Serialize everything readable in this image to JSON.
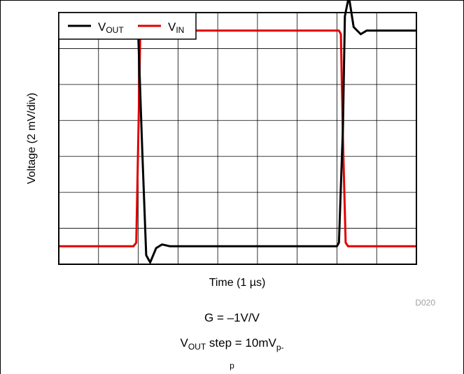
{
  "chart_data": {
    "type": "line",
    "xlabel": "Time (1 µs)",
    "ylabel": "Voltage (2 mV/div)",
    "x_divisions": 9,
    "y_divisions": 7,
    "xlim": [
      0,
      9
    ],
    "ylim": [
      0,
      7
    ],
    "grid": true,
    "legend_position": "top-left",
    "watermark": "D020",
    "series": [
      {
        "name": "VOUT",
        "color": "#000000",
        "points": [
          [
            0,
            6.5
          ],
          [
            1.95,
            6.5
          ],
          [
            2.0,
            6.35
          ],
          [
            2.1,
            3.2
          ],
          [
            2.2,
            0.25
          ],
          [
            2.3,
            0.05
          ],
          [
            2.45,
            0.45
          ],
          [
            2.6,
            0.55
          ],
          [
            2.8,
            0.5
          ],
          [
            3.5,
            0.5
          ],
          [
            7.0,
            0.5
          ],
          [
            7.05,
            0.6
          ],
          [
            7.15,
            3.8
          ],
          [
            7.2,
            6.9
          ],
          [
            7.3,
            7.45
          ],
          [
            7.42,
            6.6
          ],
          [
            7.6,
            6.4
          ],
          [
            7.75,
            6.5
          ],
          [
            9,
            6.5
          ]
        ]
      },
      {
        "name": "VIN",
        "color": "#e00000",
        "points": [
          [
            0,
            0.5
          ],
          [
            1.88,
            0.5
          ],
          [
            1.95,
            0.6
          ],
          [
            2.0,
            3.5
          ],
          [
            2.05,
            6.4
          ],
          [
            2.12,
            6.5
          ],
          [
            7.05,
            6.5
          ],
          [
            7.1,
            6.4
          ],
          [
            7.15,
            3.5
          ],
          [
            7.22,
            0.6
          ],
          [
            7.28,
            0.5
          ],
          [
            9,
            0.5
          ]
        ]
      }
    ]
  },
  "legend": {
    "vout_main": "V",
    "vout_sub": "OUT",
    "vin_main": "V",
    "vin_sub": "IN"
  },
  "caption": {
    "gain": "G = –1V/V",
    "step_main": "V",
    "step_sub": "OUT",
    "step_rest": " step = 10mV",
    "step_sub2": "p-",
    "trailing": "p"
  }
}
